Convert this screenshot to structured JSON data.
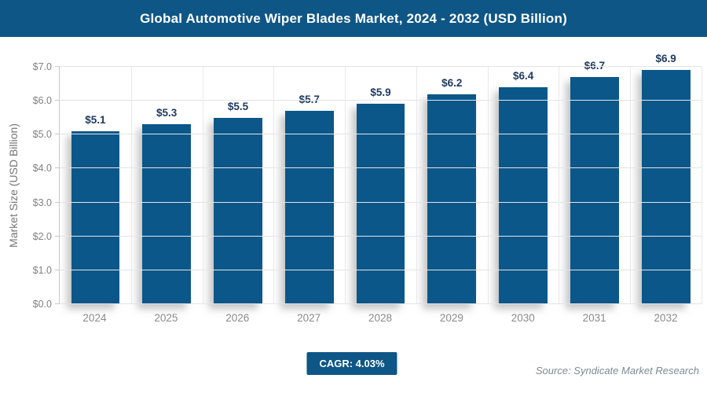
{
  "header": {
    "title": "Global Automotive Wiper Blades Market, 2024 - 2032 (USD Billion)"
  },
  "colors": {
    "accent": "#0E5685",
    "bar": "#0B5789",
    "data_label": "#1F3A5F",
    "axis_text": "#808080",
    "gridline": "#E4E4E4"
  },
  "chart_data": {
    "type": "bar",
    "title": "Global Automotive Wiper Blades Market, 2024 - 2032 (USD Billion)",
    "categories": [
      "2024",
      "2025",
      "2026",
      "2027",
      "2028",
      "2029",
      "2030",
      "2031",
      "2032"
    ],
    "values": [
      5.1,
      5.3,
      5.5,
      5.7,
      5.9,
      6.2,
      6.4,
      6.7,
      6.9
    ],
    "bar_labels": [
      "$5.1",
      "$5.3",
      "$5.5",
      "$5.7",
      "$5.9",
      "$6.2",
      "$6.4",
      "$6.7",
      "$6.9"
    ],
    "xlabel": "",
    "ylabel": "Market Size (USD Billion)",
    "ylim": [
      0,
      7
    ],
    "y_ticks": [
      "$0.0",
      "$1.0",
      "$2.0",
      "$3.0",
      "$4.0",
      "$5.0",
      "$6.0",
      "$7.0"
    ],
    "grid": true,
    "legend": "none"
  },
  "footer": {
    "cagr_label": "CAGR: 4.03%",
    "source": "Source: Syndicate Market Research"
  }
}
